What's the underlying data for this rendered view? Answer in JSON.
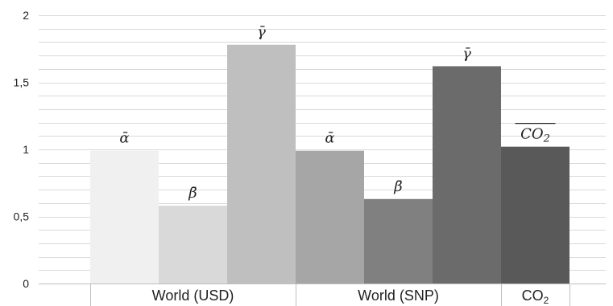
{
  "chart_data": {
    "type": "bar",
    "ylim": [
      0,
      2
    ],
    "yticks": [
      0,
      0.5,
      1,
      1.5,
      2
    ],
    "ytick_labels": [
      "0",
      "0,5",
      "1",
      "1,5",
      "2"
    ],
    "minor_grid_step": 0.1,
    "grid": true,
    "groups": [
      {
        "label": "World (USD)",
        "label_base": "World (USD)",
        "label_sub": ""
      },
      {
        "label": "World (SNP)",
        "label_base": "World (SNP)",
        "label_sub": ""
      },
      {
        "label": "CO2",
        "label_base": "CO",
        "label_sub": "2"
      }
    ],
    "bars": [
      {
        "group": 0,
        "label": "ᾱ",
        "value": 0.99,
        "color": "#f0f0f0"
      },
      {
        "group": 0,
        "label": "β̄",
        "value": 0.58,
        "color": "#d9d9d9"
      },
      {
        "group": 0,
        "label": "γ̄",
        "value": 1.78,
        "color": "#bfbfbf"
      },
      {
        "group": 1,
        "label": "ᾱ",
        "value": 0.99,
        "color": "#a6a6a6"
      },
      {
        "group": 1,
        "label": "β̄",
        "value": 0.63,
        "color": "#808080"
      },
      {
        "group": 1,
        "label": "γ̄",
        "value": 1.62,
        "color": "#6b6b6b"
      },
      {
        "group": 2,
        "label": "CO2",
        "value": 1.02,
        "color": "#595959",
        "overline": true
      }
    ]
  }
}
